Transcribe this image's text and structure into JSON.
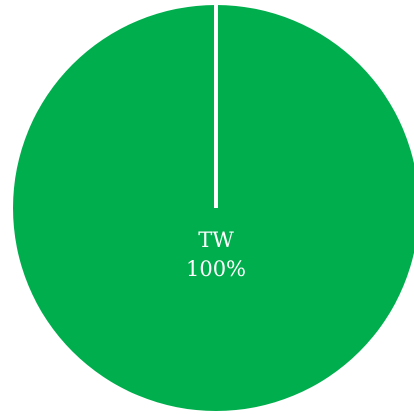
{
  "chart_data": {
    "type": "pie",
    "slices": [
      {
        "label": "TW",
        "value": 100,
        "display": "100%"
      }
    ],
    "colors": {
      "slice": "#00AE4D",
      "separator": "#ffffff"
    },
    "title": "",
    "legend": "none"
  }
}
